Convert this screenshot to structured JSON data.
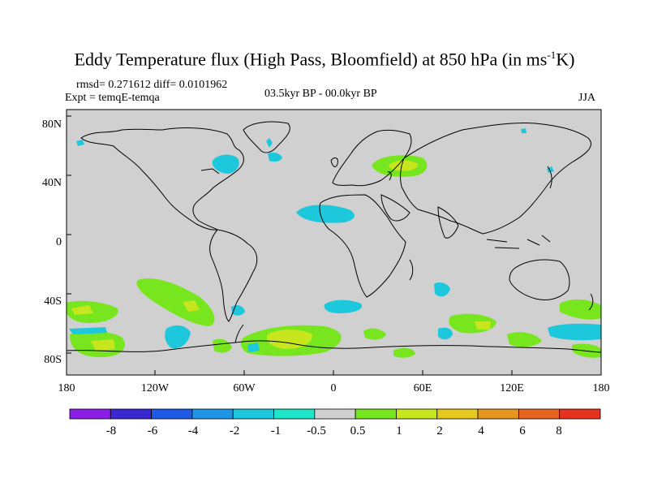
{
  "title": {
    "prefix": "Eddy Temperature flux (High Pass, Bloomfield) at 850 hPa (in ms",
    "exponent": "-1",
    "suffix": "K)"
  },
  "stats": "rmsd= 0.271612 diff= 0.0101962",
  "experiment": "Expt = temqE-temqa",
  "period": "03.5kyr BP - 00.0kyr BP",
  "season": "JJA",
  "lat_ticks": [
    "80N",
    "40N",
    "0",
    "40S",
    "80S"
  ],
  "lon_ticks": [
    "180",
    "120W",
    "60W",
    "0",
    "60E",
    "120E",
    "180"
  ],
  "colorbar": {
    "labels": [
      "-8",
      "-6",
      "-4",
      "-2",
      "-1",
      "-0.5",
      "0.5",
      "1",
      "2",
      "4",
      "6",
      "8"
    ],
    "colors": [
      "#8a1ee6",
      "#3c28d2",
      "#1e5ae6",
      "#1e96e6",
      "#1ec8dc",
      "#1ee6c8",
      "#d0d0d0",
      "#78e61e",
      "#c8e61e",
      "#e6c81e",
      "#e6961e",
      "#e6641e",
      "#e6321e"
    ]
  },
  "colors": {
    "background": "#d0d0d0",
    "coast": "#000000"
  },
  "anomalies": [
    {
      "region": "North America east coast",
      "level": "-1",
      "color": "#1ec8dc"
    },
    {
      "region": "Northeast Atlantic",
      "level": "-1",
      "color": "#1ec8dc"
    },
    {
      "region": "North Africa",
      "level": "-1",
      "color": "#1ec8dc"
    },
    {
      "region": "Central Asia",
      "level": "1",
      "color": "#78e61e"
    },
    {
      "region": "Central Asia core",
      "level": "2",
      "color": "#c8e61e"
    },
    {
      "region": "South Pacific",
      "level": "1",
      "color": "#78e61e"
    },
    {
      "region": "Southern Ocean Atlantic sector",
      "level": "2",
      "color": "#c8e61e"
    },
    {
      "region": "Southern Ocean Pacific sector",
      "level": "-1",
      "color": "#1ec8dc"
    }
  ]
}
